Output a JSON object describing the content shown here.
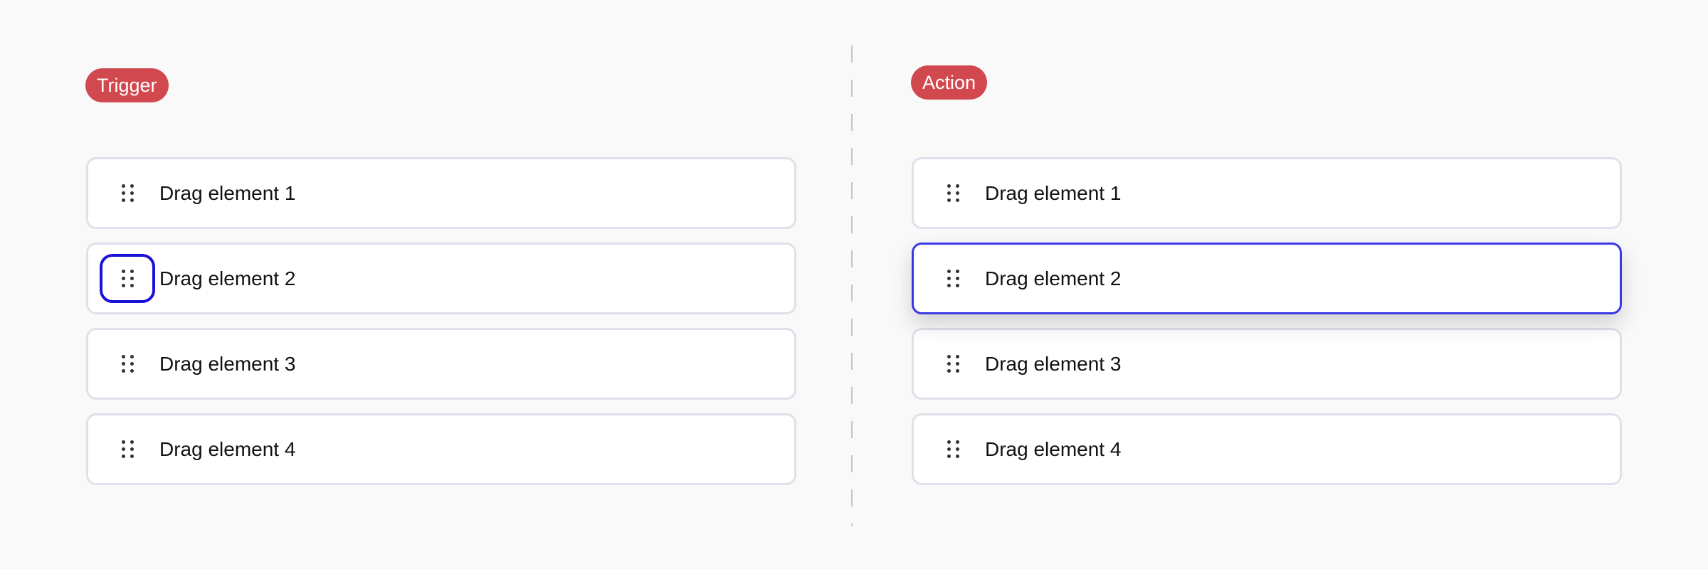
{
  "trigger": {
    "badge": "Trigger",
    "items": [
      {
        "label": "Drag element 1"
      },
      {
        "label": "Drag element 2",
        "handle_focused": true
      },
      {
        "label": "Drag element 3"
      },
      {
        "label": "Drag element 4"
      }
    ]
  },
  "action": {
    "badge": "Action",
    "items": [
      {
        "label": "Drag element 1"
      },
      {
        "label": "Drag element 2",
        "active": true
      },
      {
        "label": "Drag element 3"
      },
      {
        "label": "Drag element 4"
      }
    ]
  },
  "colors": {
    "badge": "#d1494e",
    "focus": "#1a12d6",
    "active_border": "#3b37e6"
  },
  "icons": {
    "handle": "drag-handle-icon"
  }
}
